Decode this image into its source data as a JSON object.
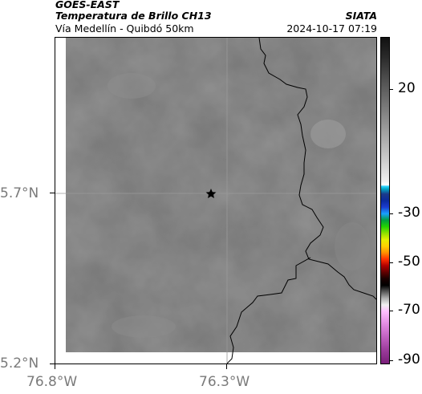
{
  "header": {
    "satellite": "GOES-EAST",
    "product": "Temperatura de Brillo CH13",
    "region": "Vía Medellín - Quibdó 50km",
    "brand": "SIATA",
    "timestamp": "2024-10-17 07:19"
  },
  "map": {
    "lat_labels": [
      "5.7°N",
      "5.2°N"
    ],
    "lon_labels": [
      "76.8°W",
      "76.3°W"
    ],
    "marker": "star",
    "field_color": "#7b7b7b",
    "border_color": "#000000"
  },
  "colorbar": {
    "labels": [
      "20",
      "-30",
      "-50",
      "-70",
      "-90"
    ],
    "values": [
      20,
      -30,
      -50,
      -70,
      -90
    ]
  }
}
